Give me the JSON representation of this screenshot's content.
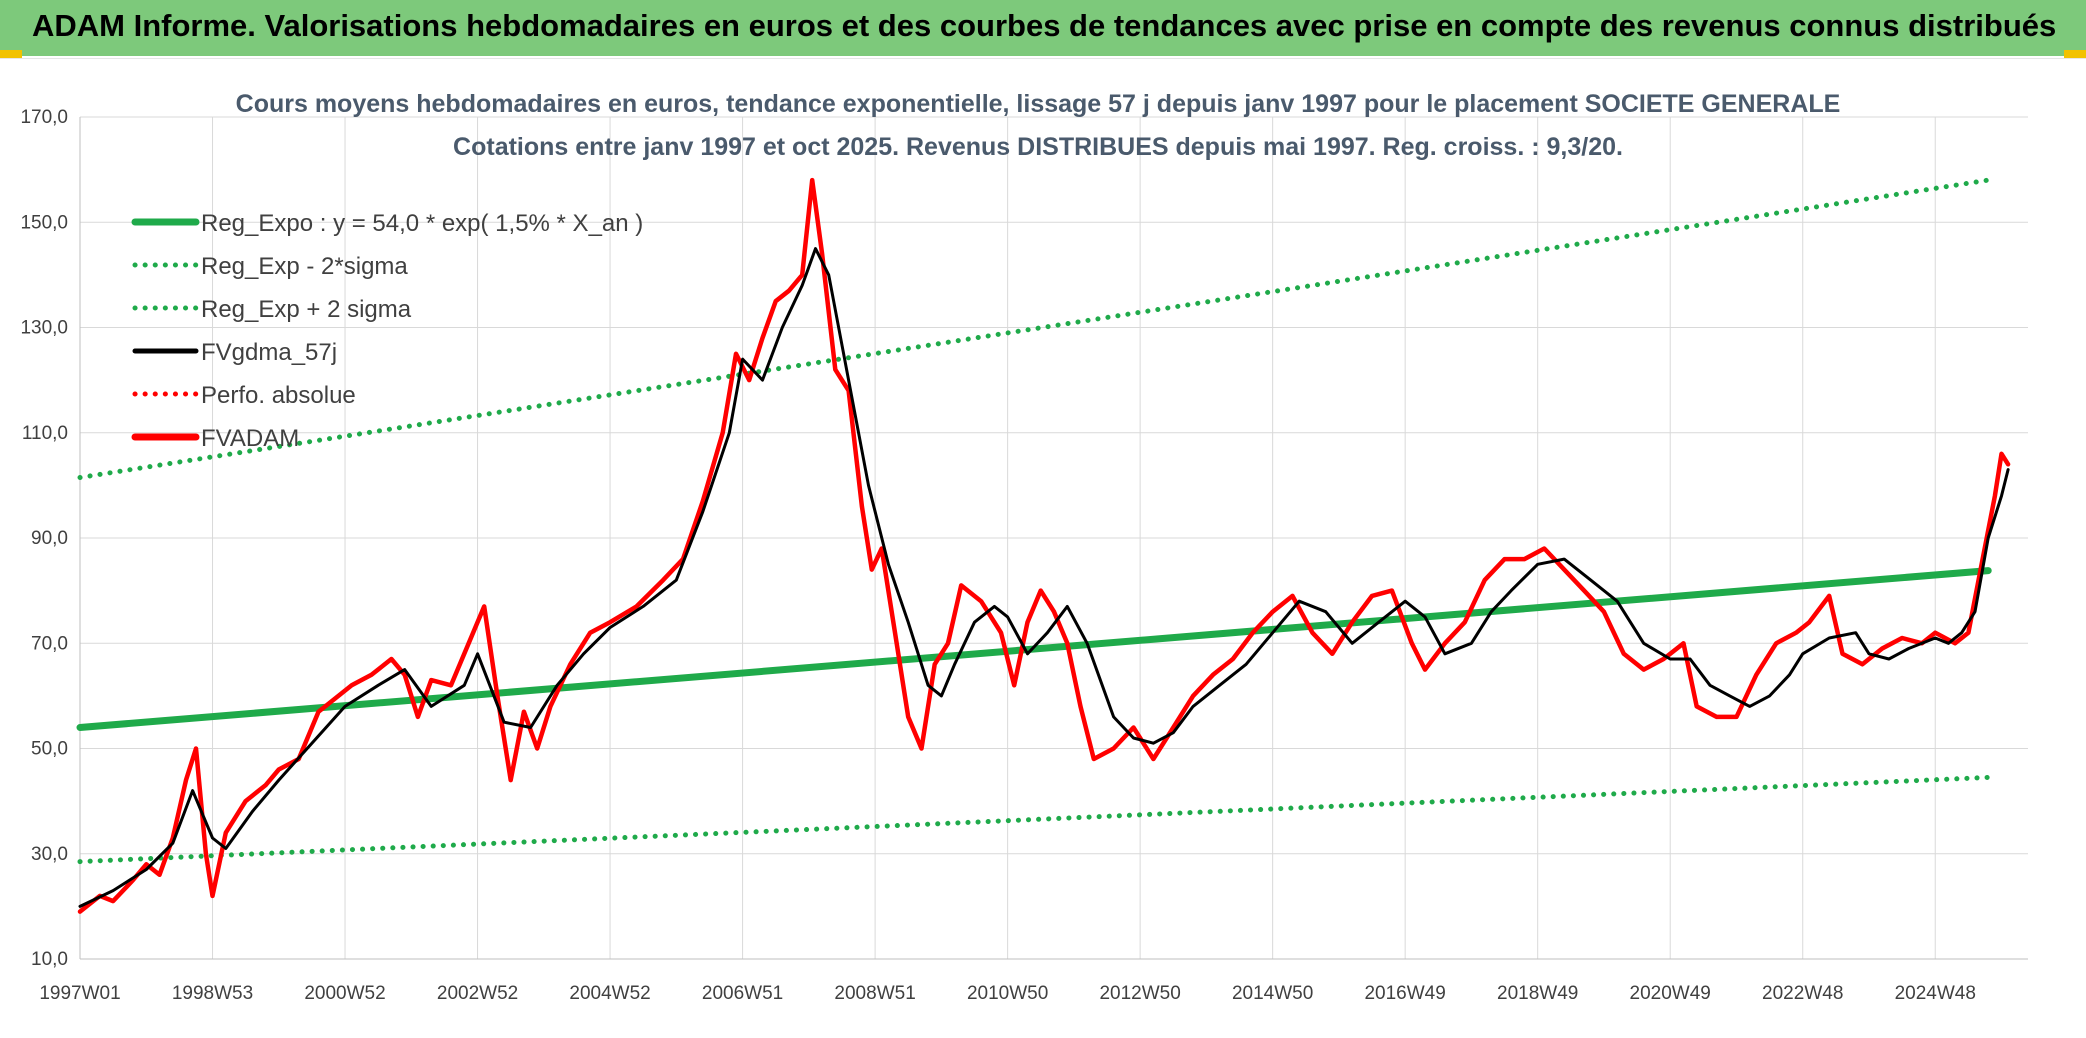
{
  "header": {
    "title": "ADAM Informe. Valorisations hebdomadaires en euros et des courbes de tendances avec prise en compte des revenus connus distribués"
  },
  "chart_data": {
    "type": "line",
    "title": "Cours moyens hebdomadaires en euros, tendance exponentielle, lissage 57 j depuis janv 1997 pour le placement SOCIETE GENERALE",
    "subtitle": "Cotations entre janv 1997 et oct 2025. Revenus DISTRIBUES depuis mai 1997. Reg. croiss. : 9,3/20.",
    "ylim": [
      10,
      170
    ],
    "yticks": [
      "10,0",
      "30,0",
      "50,0",
      "70,0",
      "90,0",
      "110,0",
      "130,0",
      "150,0",
      "170,0"
    ],
    "xlim": [
      1997.0,
      2025.8
    ],
    "xticks": [
      {
        "label": "1997W01",
        "x": 1997.0
      },
      {
        "label": "1998W53",
        "x": 1999.0
      },
      {
        "label": "2000W52",
        "x": 2001.0
      },
      {
        "label": "2002W52",
        "x": 2003.0
      },
      {
        "label": "2004W52",
        "x": 2005.0
      },
      {
        "label": "2006W51",
        "x": 2007.0
      },
      {
        "label": "2008W51",
        "x": 2009.0
      },
      {
        "label": "2010W50",
        "x": 2011.0
      },
      {
        "label": "2012W50",
        "x": 2013.0
      },
      {
        "label": "2014W50",
        "x": 2015.0
      },
      {
        "label": "2016W49",
        "x": 2017.0
      },
      {
        "label": "2018W49",
        "x": 2019.0
      },
      {
        "label": "2020W49",
        "x": 2021.0
      },
      {
        "label": "2022W48",
        "x": 2023.0
      },
      {
        "label": "2024W48",
        "x": 2025.0
      }
    ],
    "grid": true,
    "legend_position": "top-left",
    "series": [
      {
        "name": "Reg_Expo : y = 54,0 * exp( 1,5% *  X_an )",
        "color": "#1faa4a",
        "style": "solid-thick",
        "points": [
          [
            1997.0,
            54.0
          ],
          [
            2025.8,
            83.8
          ]
        ]
      },
      {
        "name": "Reg_Exp - 2*sigma",
        "color": "#1faa4a",
        "style": "dotted",
        "points": [
          [
            1997.0,
            28.5
          ],
          [
            2025.8,
            44.5
          ]
        ]
      },
      {
        "name": "Reg_Exp + 2 sigma",
        "color": "#1faa4a",
        "style": "dotted",
        "points": [
          [
            1997.0,
            101.5
          ],
          [
            2025.8,
            158.0
          ]
        ]
      },
      {
        "name": "FVgdma_57j",
        "color": "#000000",
        "style": "solid",
        "points": [
          [
            1997.0,
            20
          ],
          [
            1997.5,
            23
          ],
          [
            1998.0,
            27
          ],
          [
            1998.4,
            32
          ],
          [
            1998.7,
            42
          ],
          [
            1999.0,
            33
          ],
          [
            1999.2,
            31
          ],
          [
            1999.6,
            38
          ],
          [
            2000.0,
            44
          ],
          [
            2000.5,
            51
          ],
          [
            2001.0,
            58
          ],
          [
            2001.5,
            62
          ],
          [
            2001.9,
            65
          ],
          [
            2002.3,
            58
          ],
          [
            2002.8,
            62
          ],
          [
            2003.0,
            68
          ],
          [
            2003.4,
            55
          ],
          [
            2003.8,
            54
          ],
          [
            2004.2,
            62
          ],
          [
            2004.6,
            68
          ],
          [
            2005.0,
            73
          ],
          [
            2005.5,
            77
          ],
          [
            2006.0,
            82
          ],
          [
            2006.4,
            95
          ],
          [
            2006.8,
            110
          ],
          [
            2007.0,
            124
          ],
          [
            2007.3,
            120
          ],
          [
            2007.6,
            130
          ],
          [
            2007.9,
            138
          ],
          [
            2008.1,
            145
          ],
          [
            2008.3,
            140
          ],
          [
            2008.6,
            120
          ],
          [
            2008.9,
            100
          ],
          [
            2009.2,
            85
          ],
          [
            2009.5,
            74
          ],
          [
            2009.8,
            62
          ],
          [
            2010.0,
            60
          ],
          [
            2010.2,
            66
          ],
          [
            2010.5,
            74
          ],
          [
            2010.8,
            77
          ],
          [
            2011.0,
            75
          ],
          [
            2011.3,
            68
          ],
          [
            2011.6,
            72
          ],
          [
            2011.9,
            77
          ],
          [
            2012.2,
            70
          ],
          [
            2012.6,
            56
          ],
          [
            2012.9,
            52
          ],
          [
            2013.2,
            51
          ],
          [
            2013.5,
            53
          ],
          [
            2013.8,
            58
          ],
          [
            2014.2,
            62
          ],
          [
            2014.6,
            66
          ],
          [
            2015.0,
            72
          ],
          [
            2015.4,
            78
          ],
          [
            2015.8,
            76
          ],
          [
            2016.2,
            70
          ],
          [
            2016.6,
            74
          ],
          [
            2017.0,
            78
          ],
          [
            2017.3,
            75
          ],
          [
            2017.6,
            68
          ],
          [
            2018.0,
            70
          ],
          [
            2018.3,
            76
          ],
          [
            2018.6,
            80
          ],
          [
            2019.0,
            85
          ],
          [
            2019.4,
            86
          ],
          [
            2019.8,
            82
          ],
          [
            2020.2,
            78
          ],
          [
            2020.6,
            70
          ],
          [
            2021.0,
            67
          ],
          [
            2021.3,
            67
          ],
          [
            2021.6,
            62
          ],
          [
            2021.9,
            60
          ],
          [
            2022.2,
            58
          ],
          [
            2022.5,
            60
          ],
          [
            2022.8,
            64
          ],
          [
            2023.0,
            68
          ],
          [
            2023.4,
            71
          ],
          [
            2023.8,
            72
          ],
          [
            2024.0,
            68
          ],
          [
            2024.3,
            67
          ],
          [
            2024.6,
            69
          ],
          [
            2025.0,
            71
          ],
          [
            2025.2,
            70
          ],
          [
            2025.4,
            72
          ],
          [
            2025.6,
            76
          ],
          [
            2025.8,
            90
          ],
          [
            2026.0,
            98
          ],
          [
            2026.1,
            103
          ]
        ]
      },
      {
        "name": "Perfo. absolue",
        "color": "#ff0000",
        "style": "dotted",
        "points": []
      },
      {
        "name": "FVADAM",
        "color": "#ff0000",
        "style": "solid-thick",
        "points": [
          [
            1997.0,
            19
          ],
          [
            1997.3,
            22
          ],
          [
            1997.5,
            21
          ],
          [
            1997.8,
            25
          ],
          [
            1998.0,
            28
          ],
          [
            1998.2,
            26
          ],
          [
            1998.4,
            33
          ],
          [
            1998.6,
            44
          ],
          [
            1998.75,
            50
          ],
          [
            1998.9,
            30
          ],
          [
            1999.0,
            22
          ],
          [
            1999.2,
            34
          ],
          [
            1999.5,
            40
          ],
          [
            1999.8,
            43
          ],
          [
            2000.0,
            46
          ],
          [
            2000.3,
            48
          ],
          [
            2000.6,
            57
          ],
          [
            2000.9,
            60
          ],
          [
            2001.1,
            62
          ],
          [
            2001.4,
            64
          ],
          [
            2001.7,
            67
          ],
          [
            2001.9,
            64
          ],
          [
            2002.1,
            56
          ],
          [
            2002.3,
            63
          ],
          [
            2002.6,
            62
          ],
          [
            2002.9,
            71
          ],
          [
            2003.1,
            77
          ],
          [
            2003.3,
            60
          ],
          [
            2003.5,
            44
          ],
          [
            2003.7,
            57
          ],
          [
            2003.9,
            50
          ],
          [
            2004.1,
            58
          ],
          [
            2004.4,
            66
          ],
          [
            2004.7,
            72
          ],
          [
            2005.0,
            74
          ],
          [
            2005.4,
            77
          ],
          [
            2005.8,
            82
          ],
          [
            2006.1,
            86
          ],
          [
            2006.4,
            97
          ],
          [
            2006.7,
            110
          ],
          [
            2006.9,
            125
          ],
          [
            2007.1,
            120
          ],
          [
            2007.3,
            128
          ],
          [
            2007.5,
            135
          ],
          [
            2007.7,
            137
          ],
          [
            2007.9,
            140
          ],
          [
            2008.05,
            158
          ],
          [
            2008.2,
            144
          ],
          [
            2008.4,
            122
          ],
          [
            2008.6,
            118
          ],
          [
            2008.8,
            96
          ],
          [
            2008.95,
            84
          ],
          [
            2009.1,
            88
          ],
          [
            2009.3,
            72
          ],
          [
            2009.5,
            56
          ],
          [
            2009.7,
            50
          ],
          [
            2009.9,
            66
          ],
          [
            2010.1,
            70
          ],
          [
            2010.3,
            81
          ],
          [
            2010.6,
            78
          ],
          [
            2010.9,
            72
          ],
          [
            2011.1,
            62
          ],
          [
            2011.3,
            74
          ],
          [
            2011.5,
            80
          ],
          [
            2011.7,
            76
          ],
          [
            2011.9,
            70
          ],
          [
            2012.1,
            58
          ],
          [
            2012.3,
            48
          ],
          [
            2012.6,
            50
          ],
          [
            2012.9,
            54
          ],
          [
            2013.2,
            48
          ],
          [
            2013.5,
            54
          ],
          [
            2013.8,
            60
          ],
          [
            2014.1,
            64
          ],
          [
            2014.4,
            67
          ],
          [
            2014.7,
            72
          ],
          [
            2015.0,
            76
          ],
          [
            2015.3,
            79
          ],
          [
            2015.6,
            72
          ],
          [
            2015.9,
            68
          ],
          [
            2016.2,
            74
          ],
          [
            2016.5,
            79
          ],
          [
            2016.8,
            80
          ],
          [
            2017.1,
            70
          ],
          [
            2017.3,
            65
          ],
          [
            2017.6,
            70
          ],
          [
            2017.9,
            74
          ],
          [
            2018.2,
            82
          ],
          [
            2018.5,
            86
          ],
          [
            2018.8,
            86
          ],
          [
            2019.1,
            88
          ],
          [
            2019.4,
            84
          ],
          [
            2019.7,
            80
          ],
          [
            2020.0,
            76
          ],
          [
            2020.3,
            68
          ],
          [
            2020.6,
            65
          ],
          [
            2020.9,
            67
          ],
          [
            2021.2,
            70
          ],
          [
            2021.4,
            58
          ],
          [
            2021.7,
            56
          ],
          [
            2022.0,
            56
          ],
          [
            2022.3,
            64
          ],
          [
            2022.6,
            70
          ],
          [
            2022.9,
            72
          ],
          [
            2023.1,
            74
          ],
          [
            2023.4,
            79
          ],
          [
            2023.6,
            68
          ],
          [
            2023.9,
            66
          ],
          [
            2024.2,
            69
          ],
          [
            2024.5,
            71
          ],
          [
            2024.8,
            70
          ],
          [
            2025.0,
            72
          ],
          [
            2025.3,
            70
          ],
          [
            2025.5,
            72
          ],
          [
            2025.7,
            85
          ],
          [
            2025.9,
            98
          ],
          [
            2026.0,
            106
          ],
          [
            2026.1,
            104
          ]
        ]
      }
    ]
  }
}
